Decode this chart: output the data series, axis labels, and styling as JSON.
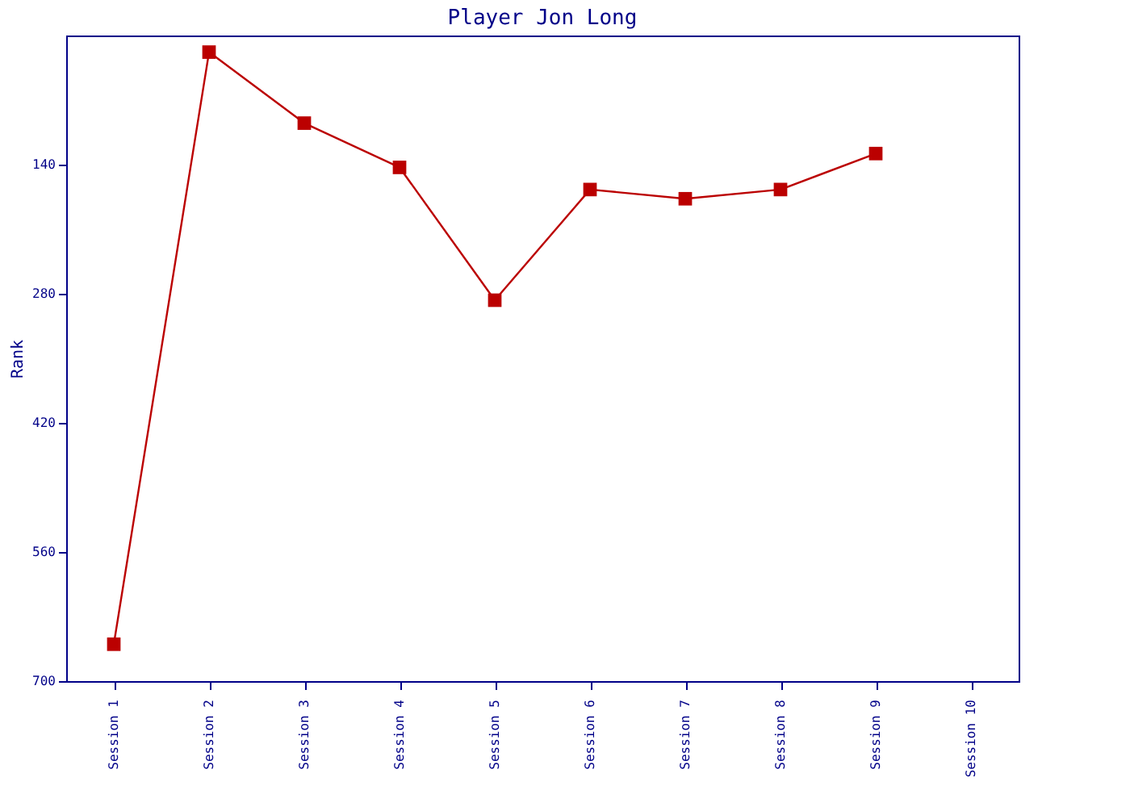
{
  "chart_data": {
    "type": "line",
    "title": "Player Jon Long",
    "ylabel": "Rank",
    "categories": [
      "Session 1",
      "Session 2",
      "Session 3",
      "Session 4",
      "Session 5",
      "Session 6",
      "Session 7",
      "Session 8",
      "Session 9",
      "Session 10"
    ],
    "series": [
      {
        "color": "#bb0000",
        "values": [
          660,
          18,
          95,
          143,
          287,
          167,
          177,
          167,
          128,
          null
        ]
      }
    ],
    "ylim": [
      700,
      0
    ],
    "yticks": [
      140,
      280,
      420,
      560,
      700
    ],
    "grid": false,
    "marker": "square",
    "line_style": "solid"
  }
}
